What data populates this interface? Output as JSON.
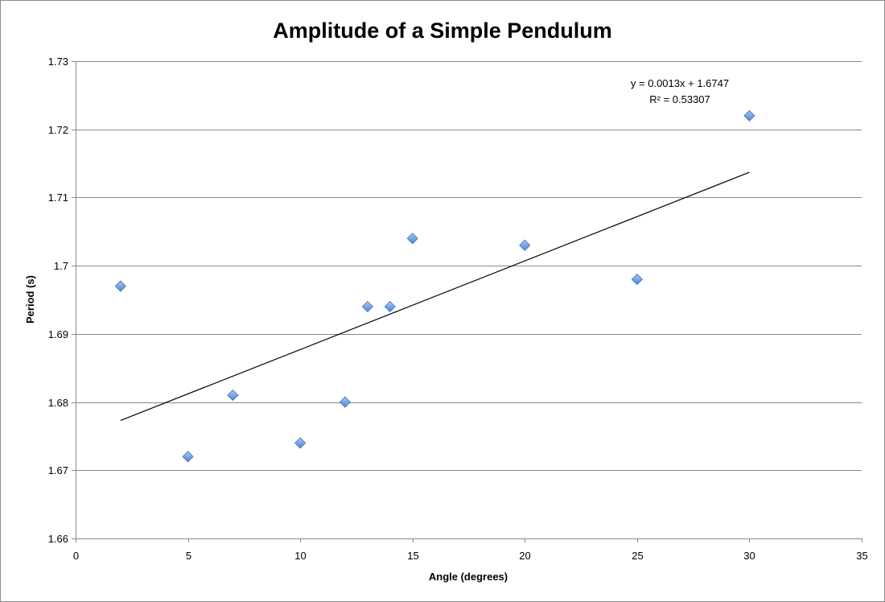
{
  "chart_data": {
    "type": "scatter",
    "title": "Amplitude of a Simple Pendulum",
    "xlabel": "Angle (degrees)",
    "ylabel": "Period (s)",
    "xlim": [
      0,
      35
    ],
    "ylim": [
      1.66,
      1.73
    ],
    "x_ticks": [
      "0",
      "5",
      "10",
      "15",
      "20",
      "25",
      "30",
      "35"
    ],
    "y_ticks": [
      "1.66",
      "1.67",
      "1.68",
      "1.69",
      "1.7",
      "1.71",
      "1.72",
      "1.73"
    ],
    "grid": "horizontal major gridlines",
    "legend": "none",
    "series": [
      {
        "marker": "diamond",
        "color": "#6f9fe0",
        "x": [
          2,
          5,
          7,
          10,
          12,
          13,
          14,
          15,
          20,
          25,
          30
        ],
        "y": [
          1.697,
          1.672,
          1.681,
          1.674,
          1.68,
          1.694,
          1.694,
          1.704,
          1.703,
          1.698,
          1.722
        ]
      }
    ],
    "trendline": {
      "type": "linear",
      "slope": 0.0013,
      "intercept": 1.6747,
      "x_range": [
        2,
        30
      ],
      "color": "#000000",
      "equation_label": "y = 0.0013x + 1.6747",
      "r_squared_label": "R² = 0.53307"
    }
  }
}
